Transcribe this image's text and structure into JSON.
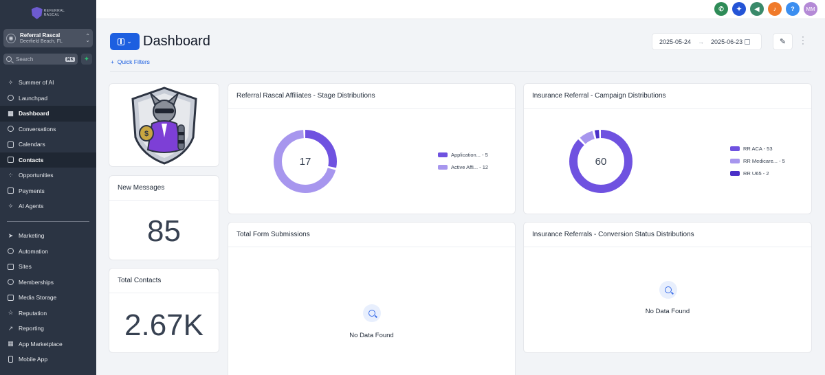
{
  "account": {
    "name": "Referral Rascal",
    "location": "Deerfield Beach, FL"
  },
  "search": {
    "placeholder": "Search",
    "shortcut": "⌘K"
  },
  "sidebar": {
    "items": [
      {
        "label": "Summer of AI",
        "icon": "sparkle-icon"
      },
      {
        "label": "Launchpad",
        "icon": "rocket-icon"
      },
      {
        "label": "Dashboard",
        "icon": "grid-icon"
      },
      {
        "label": "Conversations",
        "icon": "chat-icon"
      },
      {
        "label": "Calendars",
        "icon": "calendar-icon"
      },
      {
        "label": "Contacts",
        "icon": "contacts-icon"
      },
      {
        "label": "Opportunities",
        "icon": "opportunities-icon"
      },
      {
        "label": "Payments",
        "icon": "payments-icon"
      },
      {
        "label": "AI Agents",
        "icon": "sparkle-icon"
      }
    ],
    "items2": [
      {
        "label": "Marketing",
        "icon": "send-icon"
      },
      {
        "label": "Automation",
        "icon": "automation-icon"
      },
      {
        "label": "Sites",
        "icon": "sites-icon"
      },
      {
        "label": "Memberships",
        "icon": "membership-icon"
      },
      {
        "label": "Media Storage",
        "icon": "image-icon"
      },
      {
        "label": "Reputation",
        "icon": "star-icon"
      },
      {
        "label": "Reporting",
        "icon": "trend-icon"
      },
      {
        "label": "App Marketplace",
        "icon": "apps-icon"
      },
      {
        "label": "Mobile App",
        "icon": "phone-icon"
      }
    ]
  },
  "topbar": {
    "avatar_initials": "MM",
    "help": "?",
    "colors": {
      "phone": "#2e8b57",
      "ai": "#2454d6",
      "announce": "#3a8a6a",
      "notify": "#f07a2a",
      "help": "#3b8ef0",
      "avatar": "#b48ad6"
    }
  },
  "header": {
    "title": "Dashboard",
    "quick_filters": "Quick Filters",
    "date_start": "2025-05-24",
    "date_end": "2025-06-23"
  },
  "cards": {
    "new_messages": {
      "title": "New Messages",
      "value": "85"
    },
    "total_contacts": {
      "title": "Total Contacts",
      "value": "2.67K"
    },
    "affiliates": {
      "title": "Referral Rascal Affiliates - Stage Distributions",
      "total": "17",
      "legend": [
        "Application... - 5",
        "Active Affi... - 12"
      ]
    },
    "campaign": {
      "title": "Insurance Referral - Campaign Distributions",
      "total": "60",
      "legend": [
        "RR ACA - 53",
        "RR Medicare... - 5",
        "RR U65 - 2"
      ]
    },
    "forms": {
      "title": "Total Form Submissions",
      "empty": "No Data Found"
    },
    "conversion": {
      "title": "Insurance Referrals - Conversion Status Distributions",
      "empty": "No Data Found"
    }
  },
  "chart_data": [
    {
      "type": "pie",
      "title": "Referral Rascal Affiliates - Stage Distributions",
      "categories": [
        "Application...",
        "Active Affi..."
      ],
      "values": [
        5,
        12
      ],
      "colors": [
        "#6f52e0",
        "#a796ee"
      ]
    },
    {
      "type": "pie",
      "title": "Insurance Referral - Campaign Distributions",
      "categories": [
        "RR ACA",
        "RR Medicare...",
        "RR U65"
      ],
      "values": [
        53,
        5,
        2
      ],
      "colors": [
        "#6f52e0",
        "#a796ee",
        "#4a30c8"
      ]
    }
  ]
}
